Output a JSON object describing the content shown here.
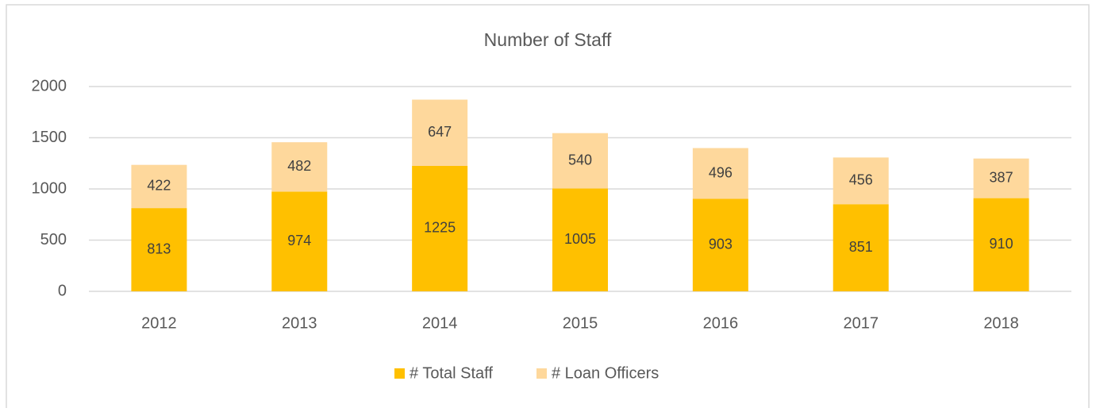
{
  "chart_data": {
    "type": "stacked_bar",
    "title": "Number of Staff",
    "categories": [
      "2012",
      "2013",
      "2014",
      "2015",
      "2016",
      "2017",
      "2018"
    ],
    "series": [
      {
        "name": "# Total Staff",
        "color": "#ffc000",
        "values": [
          813,
          974,
          1225,
          1005,
          903,
          851,
          910
        ]
      },
      {
        "name": "# Loan Officers",
        "color": "#fed89c",
        "values": [
          422,
          482,
          647,
          540,
          496,
          456,
          387
        ]
      }
    ],
    "ylim": [
      0,
      2000
    ],
    "yticks": [
      0,
      500,
      1000,
      1500,
      2000
    ],
    "grid": true,
    "legend": "bottom",
    "data_labels": true
  }
}
